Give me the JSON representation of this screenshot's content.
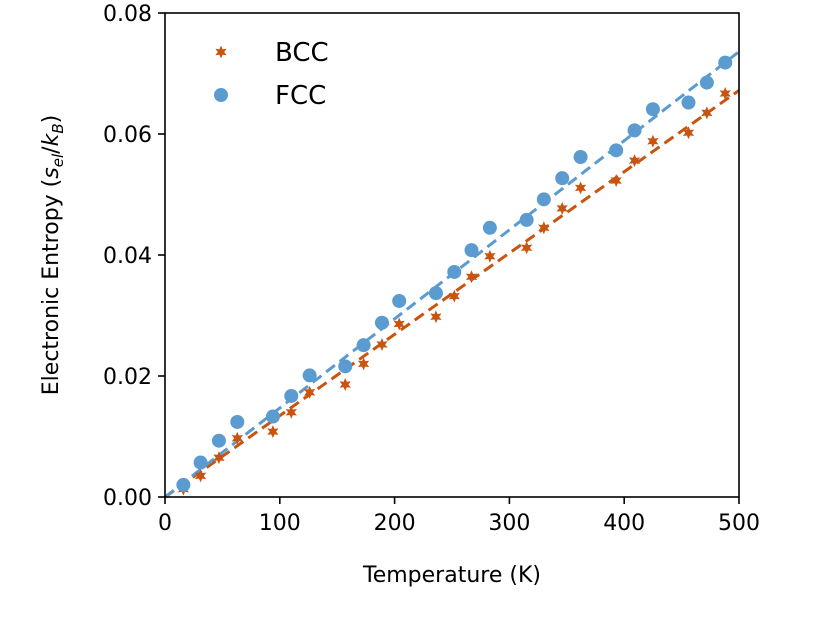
{
  "chart_data": {
    "type": "scatter",
    "title": "",
    "xlabel": "Temperature (K)",
    "ylabel": {
      "prefix": "Electronic Entropy (",
      "s": "s",
      "s_sub": "el",
      "slash": "/",
      "k": "k",
      "k_sub": "B",
      "suffix": ")"
    },
    "xlim": [
      0,
      500
    ],
    "ylim": [
      0,
      0.08
    ],
    "xticks": [
      0,
      100,
      200,
      300,
      400,
      500
    ],
    "xtick_labels": [
      "0",
      "100",
      "200",
      "300",
      "400",
      "500"
    ],
    "yticks": [
      0,
      0.02,
      0.04,
      0.06,
      0.08
    ],
    "ytick_labels": [
      "0.00",
      "0.02",
      "0.04",
      "0.06",
      "0.08"
    ],
    "grid": false,
    "legend_position": "top-left",
    "series": [
      {
        "name": "BCC",
        "marker": "star",
        "color": "#c9540f",
        "x": [
          16,
          31,
          47,
          63,
          94,
          110,
          126,
          157,
          173,
          189,
          204,
          236,
          252,
          267,
          283,
          315,
          330,
          346,
          362,
          393,
          409,
          425,
          456,
          472,
          488
        ],
        "y": [
          0.0013,
          0.0035,
          0.0065,
          0.0097,
          0.0108,
          0.014,
          0.0173,
          0.0186,
          0.022,
          0.0252,
          0.0286,
          0.0298,
          0.0332,
          0.0364,
          0.0398,
          0.0412,
          0.0445,
          0.0477,
          0.0511,
          0.0523,
          0.0556,
          0.0588,
          0.0602,
          0.0635,
          0.0667
        ],
        "fit": {
          "slope": 0.0001344,
          "intercept": 0.0
        }
      },
      {
        "name": "FCC",
        "marker": "circle",
        "color": "#5b9bd0",
        "x": [
          16,
          31,
          47,
          63,
          94,
          110,
          126,
          157,
          173,
          189,
          204,
          236,
          252,
          267,
          283,
          315,
          330,
          346,
          362,
          393,
          409,
          425,
          456,
          472,
          488
        ],
        "y": [
          0.002,
          0.0057,
          0.0093,
          0.0124,
          0.0133,
          0.0167,
          0.0201,
          0.0216,
          0.0251,
          0.0288,
          0.0324,
          0.0337,
          0.0372,
          0.0408,
          0.0445,
          0.0458,
          0.0492,
          0.0527,
          0.0562,
          0.0573,
          0.0606,
          0.0641,
          0.0652,
          0.0685,
          0.0718
        ],
        "fit": {
          "slope": 0.0001472,
          "intercept": 0.0
        }
      }
    ]
  }
}
